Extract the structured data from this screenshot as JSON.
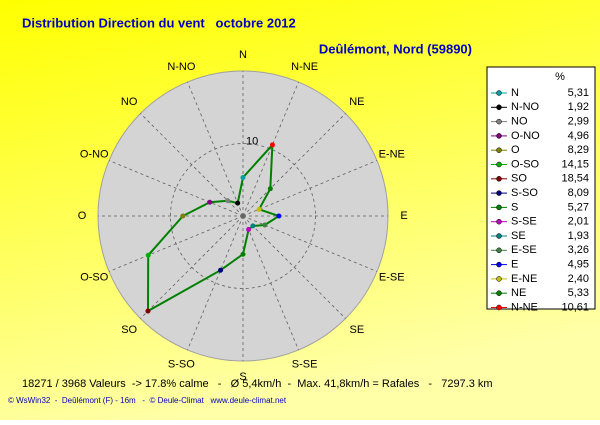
{
  "chart_data": {
    "type": "windrose",
    "title": "Distribution Direction du vent   octobre 2012",
    "subtitle": "Deûlémont, Nord (59890)",
    "legend_header": "%",
    "categories": [
      "N",
      "N-NO",
      "NO",
      "O-NO",
      "O",
      "O-SO",
      "SO",
      "S-SO",
      "S",
      "S-SE",
      "SE",
      "E-SE",
      "E",
      "E-NE",
      "NE",
      "N-NE"
    ],
    "values": [
      5.31,
      1.92,
      2.99,
      4.96,
      8.29,
      14.15,
      18.54,
      8.09,
      5.27,
      2.01,
      1.93,
      3.26,
      4.95,
      2.4,
      5.33,
      10.61
    ],
    "value_labels": [
      "5,31",
      "1,92",
      "2,99",
      "4,96",
      "8,29",
      "14,15",
      "18,54",
      "8,09",
      "5,27",
      "2,01",
      "1,93",
      "3,26",
      "4,95",
      "2,40",
      "5,33",
      "10,61"
    ],
    "colors": [
      "#00a0a0",
      "#000000",
      "#808080",
      "#800080",
      "#808000",
      "#00b000",
      "#800000",
      "#000080",
      "#008000",
      "#c000c0",
      "#008080",
      "#408040",
      "#0000ff",
      "#c0c000",
      "#008000",
      "#ff0000"
    ],
    "line_color": "#008000",
    "rlim": [
      0,
      20
    ],
    "rticks": [
      10
    ],
    "footer": "18271 / 3968 Valeurs  -> 17.8% calme   -   Ø 5,4km/h  -  Max. 41,8km/h = Rafales   -   7297.3 km",
    "credits": "© WsWin32  -  Deûlémont (F) - 16m   -  © Deule-Climat   www.deule-climat.net"
  }
}
